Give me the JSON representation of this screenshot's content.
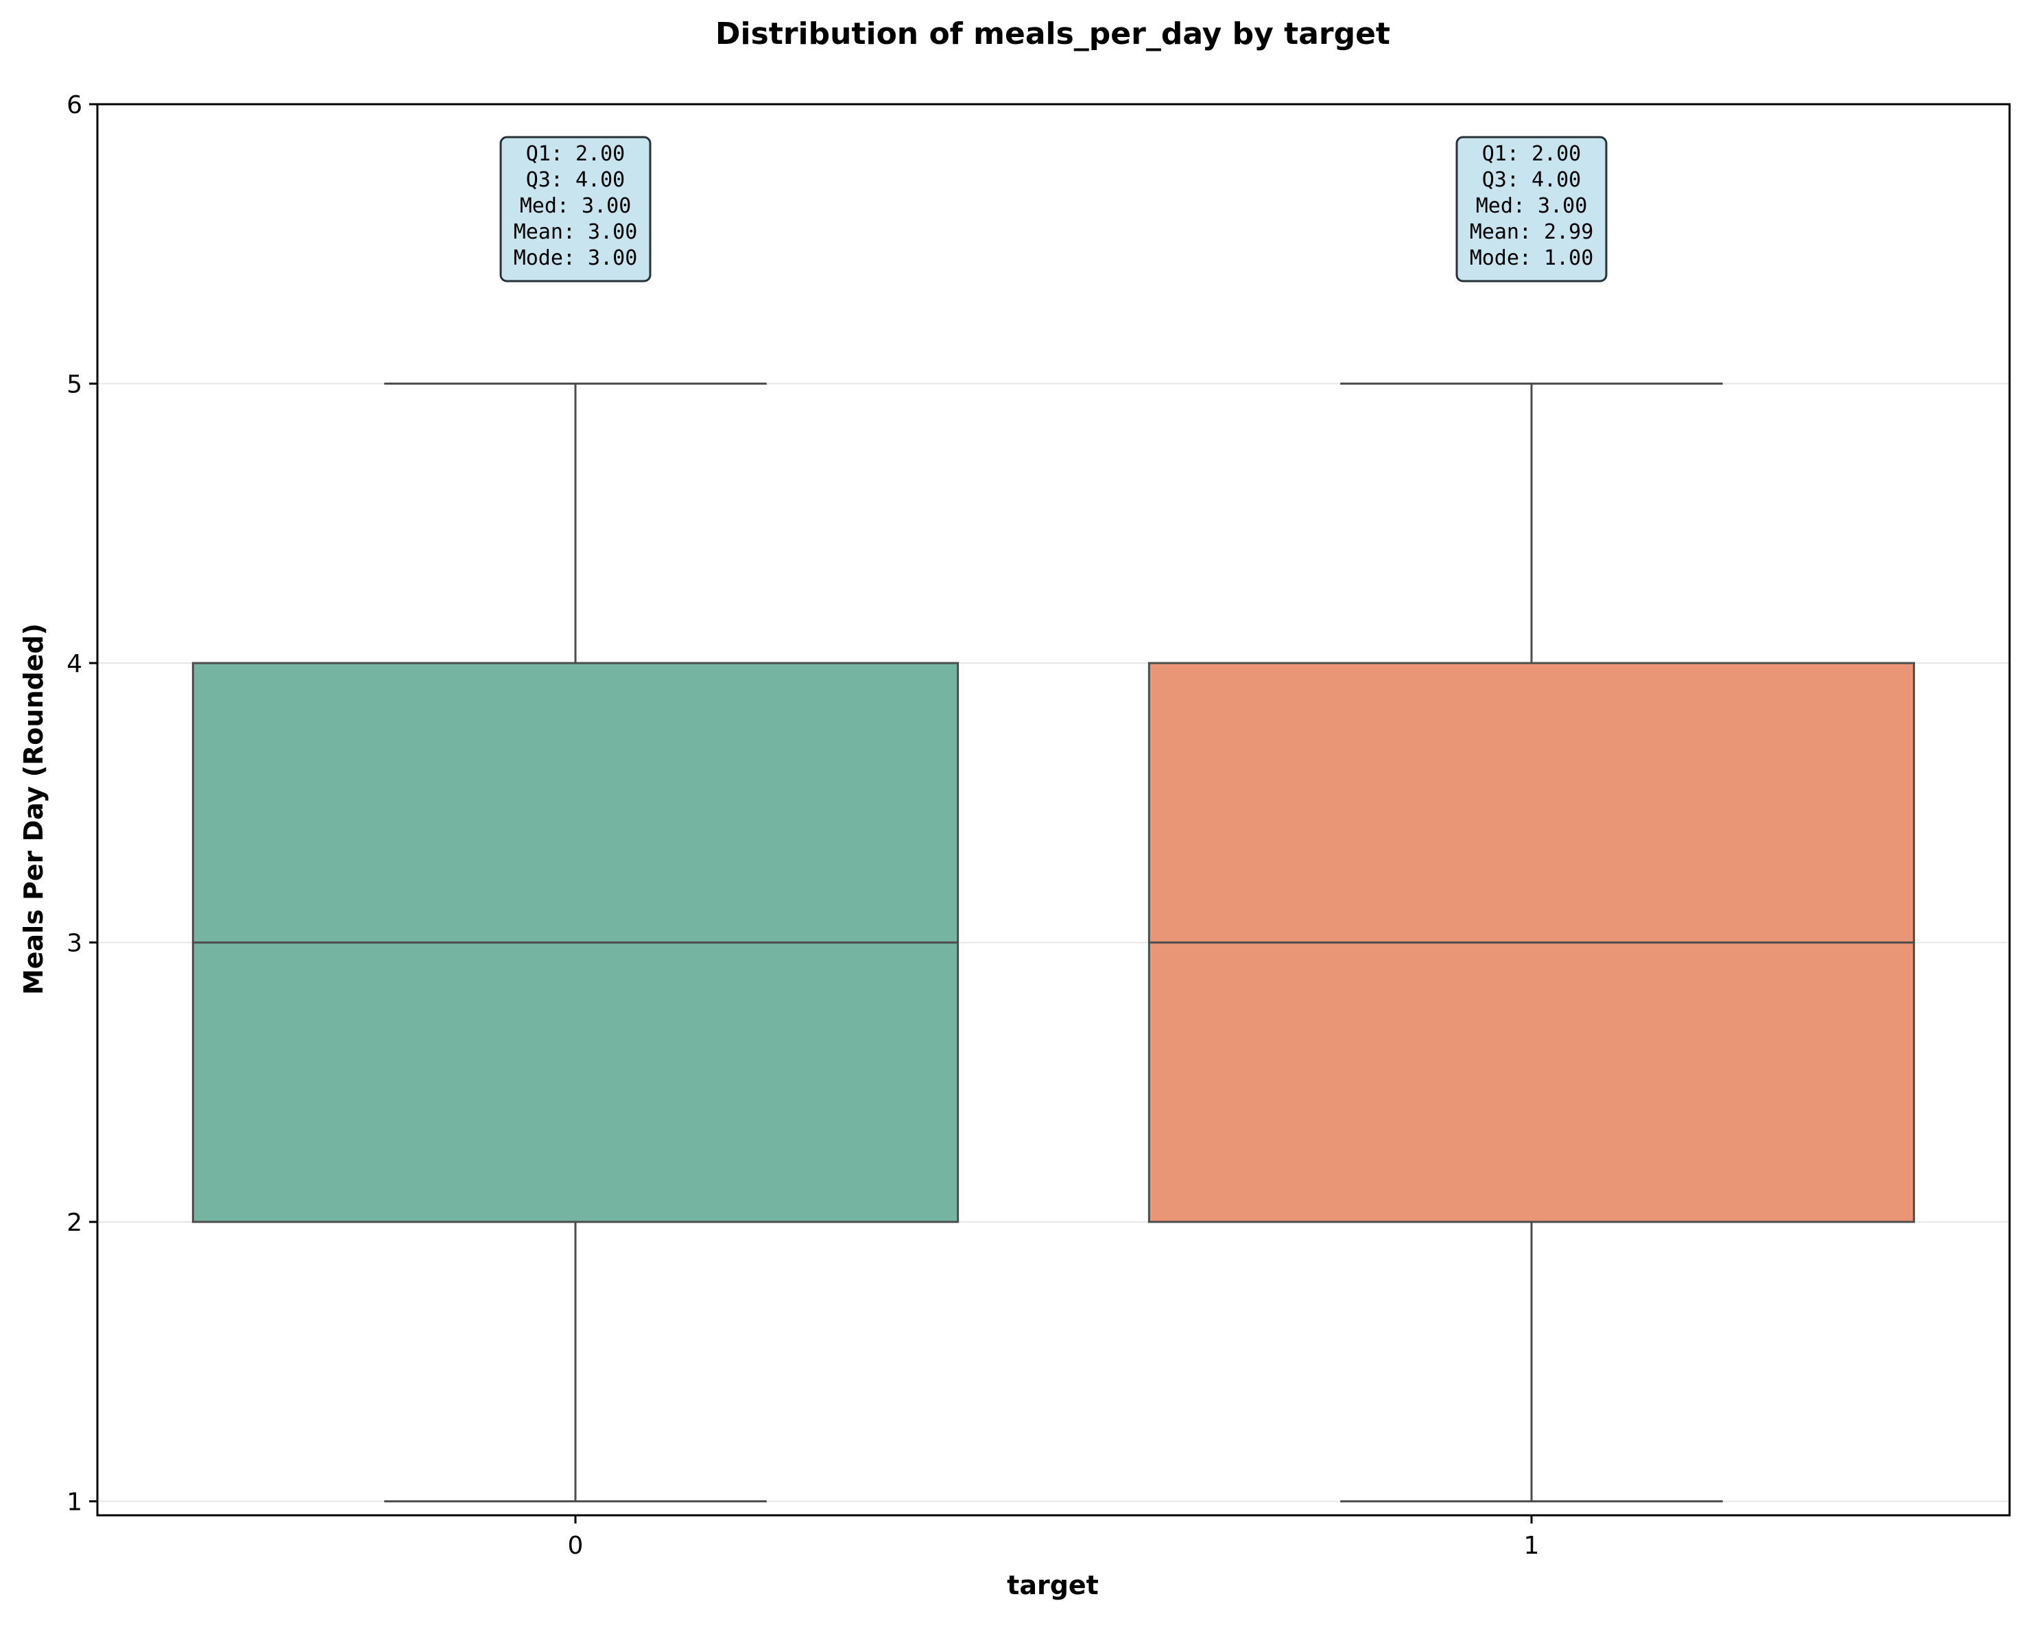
{
  "chart_data": {
    "type": "box",
    "title": "Distribution of meals_per_day by target",
    "xlabel": "target",
    "ylabel": "Meals Per Day (Rounded)",
    "ylim": [
      0.95,
      6
    ],
    "yticks": [
      1,
      2,
      3,
      4,
      5,
      6
    ],
    "categories": [
      "0",
      "1"
    ],
    "grid": "y",
    "boxes": [
      {
        "category": "0",
        "whisker_low": 1,
        "q1": 2,
        "median": 3,
        "q3": 4,
        "whisker_high": 5,
        "color": "#74b4a0",
        "stats_text": [
          "Q1: 2.00",
          "Q3: 4.00",
          "Med: 3.00",
          "Mean: 3.00",
          "Mode: 3.00"
        ]
      },
      {
        "category": "1",
        "whisker_low": 1,
        "q1": 2,
        "median": 3,
        "q3": 4,
        "whisker_high": 5,
        "color": "#e89675",
        "stats_text": [
          "Q1: 2.00",
          "Q3: 4.00",
          "Med: 3.00",
          "Mean: 2.99",
          "Mode: 1.00"
        ]
      }
    ],
    "stats_box_fill": "#c8e4ee",
    "box_edge_color": "#4d4d4d",
    "grid_color": "#e6e6e6"
  }
}
